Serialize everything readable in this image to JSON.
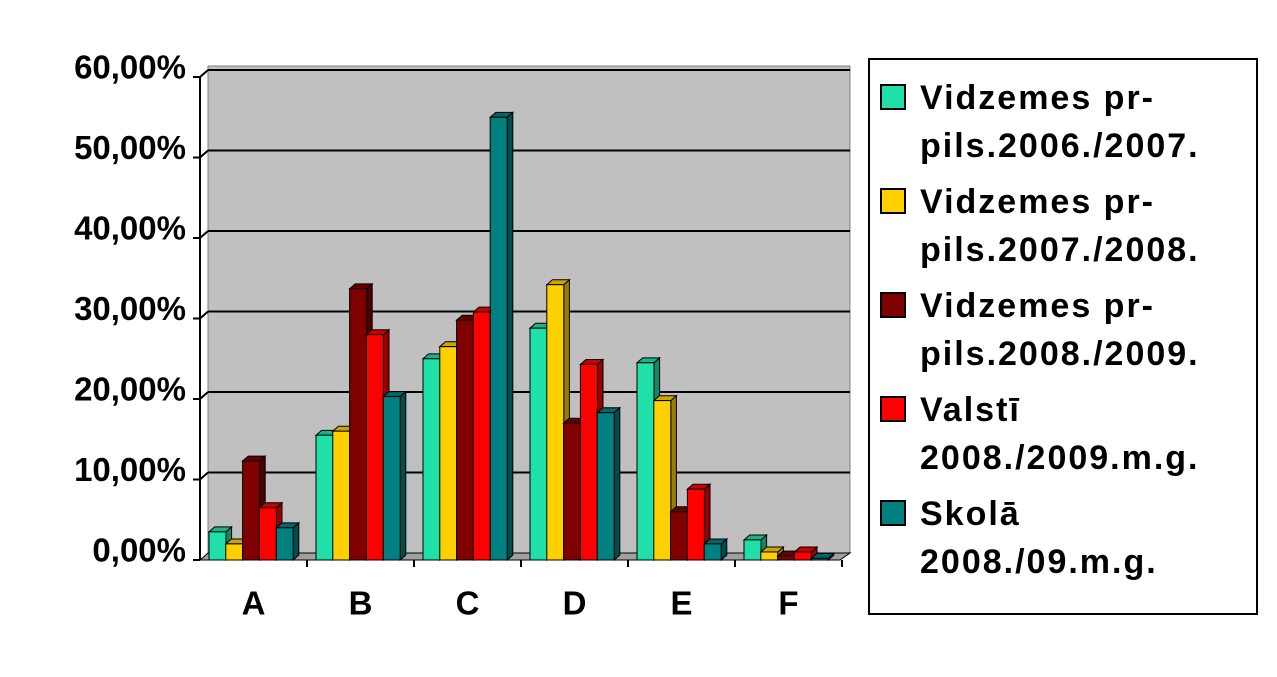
{
  "chart_data": {
    "type": "bar3d",
    "categories": [
      "A",
      "B",
      "C",
      "D",
      "E",
      "F"
    ],
    "series": [
      {
        "name": "Vidzemes pr-pils.2006./2007.",
        "color": "#1ee0a8",
        "values": [
          3.5,
          15.5,
          25,
          28.8,
          24.5,
          2.5
        ]
      },
      {
        "name": "Vidzemes pr-pils.2007./2008.",
        "color": "#ffd000",
        "values": [
          2,
          16,
          26.5,
          34.2,
          19.8,
          1
        ]
      },
      {
        "name": "Vidzemes pr-pils.2008./2009.",
        "color": "#800000",
        "values": [
          12.3,
          33.7,
          29.8,
          17,
          6,
          0.5
        ]
      },
      {
        "name": "Valstī 2008./2009.m.g.",
        "color": "#ff0000",
        "values": [
          6.5,
          28,
          30.8,
          24.3,
          8.8,
          1
        ]
      },
      {
        "name": "Skolā 2008./09.m.g.",
        "color": "#008080",
        "values": [
          4,
          20.3,
          55,
          18.3,
          2,
          0.2
        ]
      }
    ],
    "ylim": [
      0,
      60
    ],
    "yticks": [
      {
        "value": 0,
        "label": "0,00%"
      },
      {
        "value": 10,
        "label": "10,00%"
      },
      {
        "value": 20,
        "label": "20,00%"
      },
      {
        "value": 30,
        "label": "30,00%"
      },
      {
        "value": 40,
        "label": "40,00%"
      },
      {
        "value": 50,
        "label": "50,00%"
      },
      {
        "value": 60,
        "label": "60,00%"
      }
    ],
    "grid": true
  }
}
